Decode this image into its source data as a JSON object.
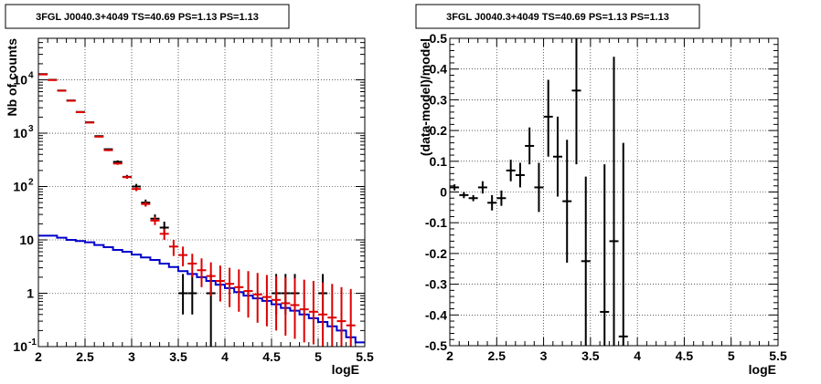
{
  "chart_data": [
    {
      "type": "scatter",
      "title": "3FGL J0040.3+4049 TS=40.69 PS=1.13 PS=1.13",
      "xlabel": "logE",
      "ylabel": "Nb of counts",
      "xlim": [
        2,
        5.5
      ],
      "ylim": [
        0.1,
        60000
      ],
      "yscale": "log",
      "grid": true,
      "x_ticks": [
        "2",
        "2.5",
        "3",
        "3.5",
        "4",
        "4.5",
        "5",
        "5.5"
      ],
      "y_ticks": [
        {
          "value": 0.1,
          "label": "10",
          "sup": "-1"
        },
        {
          "value": 1,
          "label": "1",
          "sup": ""
        },
        {
          "value": 10,
          "label": "10",
          "sup": ""
        },
        {
          "value": 100,
          "label": "10",
          "sup": "2"
        },
        {
          "value": 1000,
          "label": "10",
          "sup": "3"
        },
        {
          "value": 10000,
          "label": "10",
          "sup": "4"
        }
      ],
      "series": [
        {
          "color": "#000000",
          "kind": "points",
          "x": [
            2.05,
            2.15,
            2.25,
            2.35,
            2.45,
            2.55,
            2.65,
            2.75,
            2.85,
            2.95,
            3.05,
            3.15,
            3.25,
            3.35,
            3.55,
            3.65,
            3.85,
            4.55,
            4.65,
            4.75,
            5.05
          ],
          "y": [
            12800,
            10000,
            6300,
            4100,
            2500,
            1600,
            880,
            500,
            290,
            152,
            100,
            50,
            25,
            17,
            1,
            1,
            1,
            1,
            1,
            1,
            1
          ],
          "ylo": [
            12600,
            9800,
            6200,
            4000,
            2450,
            1560,
            850,
            480,
            280,
            140,
            88,
            43,
            20,
            13,
            0.4,
            0.4,
            0.1,
            0.4,
            0.4,
            0.4,
            0.4
          ],
          "yhi": [
            13000,
            10200,
            6400,
            4200,
            2550,
            1640,
            910,
            520,
            310,
            165,
            112,
            57,
            30,
            22,
            2.3,
            2.3,
            2.3,
            2.3,
            2.3,
            2.3,
            2.3
          ]
        },
        {
          "color": "#dd0000",
          "kind": "points",
          "x": [
            2.05,
            2.15,
            2.25,
            2.35,
            2.45,
            2.55,
            2.65,
            2.75,
            2.85,
            2.95,
            3.05,
            3.15,
            3.25,
            3.35,
            3.45,
            3.55,
            3.65,
            3.75,
            3.85,
            3.95,
            4.05,
            4.15,
            4.25,
            4.35,
            4.45,
            4.55,
            4.65,
            4.75,
            4.85,
            4.95,
            5.05,
            5.15,
            5.25,
            5.35
          ],
          "y": [
            12600,
            9900,
            6250,
            4050,
            2480,
            1580,
            860,
            480,
            270,
            150,
            90,
            47,
            23,
            13,
            7.5,
            5.2,
            3.6,
            2.7,
            2.1,
            1.7,
            1.5,
            1.3,
            1.1,
            0.95,
            0.85,
            0.75,
            0.65,
            0.6,
            0.5,
            0.45,
            0.4,
            0.35,
            0.3,
            0.25
          ],
          "ylo": [
            12500,
            9800,
            6150,
            3980,
            2430,
            1540,
            830,
            460,
            255,
            140,
            82,
            42,
            19,
            10,
            5,
            3.2,
            2,
            1.3,
            0.9,
            0.7,
            0.55,
            0.45,
            0.35,
            0.28,
            0.24,
            0.2,
            0.16,
            0.14,
            0.12,
            0.11,
            0.1,
            0.1,
            0.1,
            0.1
          ],
          "yhi": [
            12700,
            10000,
            6350,
            4120,
            2530,
            1620,
            890,
            500,
            285,
            160,
            98,
            52,
            27,
            16,
            10,
            7.5,
            5.5,
            4.5,
            3.8,
            3.3,
            3,
            2.8,
            2.6,
            2.4,
            2.2,
            2.1,
            2,
            1.9,
            1.8,
            1.7,
            1.6,
            1.5,
            1.3,
            1.2
          ]
        },
        {
          "color": "#0000cc",
          "kind": "step",
          "x_edges": [
            2.0,
            2.1,
            2.2,
            2.3,
            2.4,
            2.5,
            2.6,
            2.7,
            2.8,
            2.9,
            3.0,
            3.1,
            3.2,
            3.3,
            3.4,
            3.5,
            3.6,
            3.7,
            3.8,
            3.9,
            4.0,
            4.1,
            4.2,
            4.3,
            4.4,
            4.5,
            4.6,
            4.7,
            4.8,
            4.9,
            5.0,
            5.1,
            5.2,
            5.3,
            5.4,
            5.5
          ],
          "values": [
            12,
            12,
            11,
            10,
            9.5,
            9,
            8,
            7.3,
            6.5,
            6,
            5.3,
            4.7,
            4.2,
            3.6,
            3.1,
            2.6,
            2.3,
            2.0,
            1.7,
            1.45,
            1.25,
            1.05,
            0.9,
            0.8,
            0.72,
            0.62,
            0.53,
            0.47,
            0.4,
            0.34,
            0.29,
            0.24,
            0.2,
            0.15,
            0.12
          ]
        }
      ]
    },
    {
      "type": "scatter",
      "title": "3FGL J0040.3+4049 TS=40.69 PS=1.13 PS=1.13",
      "xlabel": "logE",
      "ylabel": "(data-model)/model",
      "xlim": [
        2,
        5.5
      ],
      "ylim": [
        -0.5,
        0.5
      ],
      "grid": true,
      "x_ticks": [
        "2",
        "2.5",
        "3",
        "3.5",
        "4",
        "4.5",
        "5",
        "5.5"
      ],
      "y_ticks": [
        "-0.5",
        "-0.4",
        "-0.3",
        "-0.2",
        "-0.1",
        "0",
        "0.1",
        "0.2",
        "0.3",
        "0.4",
        "0.5"
      ],
      "series": [
        {
          "color": "#000000",
          "kind": "points",
          "x": [
            2.05,
            2.15,
            2.25,
            2.35,
            2.45,
            2.55,
            2.65,
            2.75,
            2.85,
            2.95,
            3.05,
            3.15,
            3.25,
            3.35,
            3.45,
            3.65,
            3.75,
            3.85
          ],
          "y": [
            0.015,
            -0.01,
            -0.02,
            0.015,
            -0.035,
            -0.02,
            0.07,
            0.055,
            0.15,
            0.015,
            0.245,
            0.115,
            -0.03,
            0.33,
            -0.225,
            -0.39,
            -0.16,
            -0.47
          ],
          "ylo": [
            0.005,
            -0.02,
            -0.03,
            -0.005,
            -0.06,
            -0.045,
            0.035,
            0.015,
            0.09,
            -0.065,
            0.115,
            -0.015,
            -0.23,
            0.09,
            -0.5,
            -0.5,
            -0.5,
            -0.5
          ],
          "yhi": [
            0.025,
            0.0,
            -0.01,
            0.035,
            -0.01,
            0.005,
            0.105,
            0.095,
            0.21,
            0.095,
            0.365,
            0.245,
            0.17,
            0.5,
            0.05,
            0.09,
            0.44,
            0.16
          ]
        }
      ]
    }
  ]
}
